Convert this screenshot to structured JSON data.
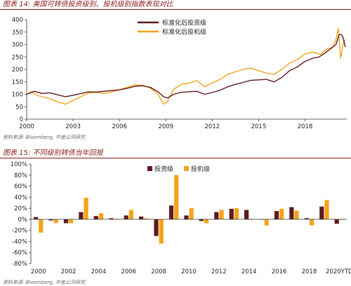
{
  "figures": [
    {
      "title": "图表 14:  美国可转债投资级别、投机级别指数表现对比",
      "source": "资料来源:  Bloomberg, 中金公司研究"
    },
    {
      "title": "图表 15:  不同级别转债当年回报",
      "source": "资料来源:  Bloomberg, 中金公司研究"
    }
  ],
  "colors": {
    "investment": "#5e1a1c",
    "speculative": "#f5a31a",
    "header": "#8a1a14"
  },
  "chart_data": [
    {
      "type": "line",
      "title": "",
      "xlabel": "",
      "ylabel": "",
      "xlim": [
        2000,
        2020.7
      ],
      "ylim": [
        0,
        400
      ],
      "x_ticks": [
        "2000",
        "2003",
        "2006",
        "2009",
        "2012",
        "2015",
        "2018"
      ],
      "y_ticks": [
        "0",
        "50",
        "100",
        "150",
        "200",
        "250",
        "300",
        "350",
        "400"
      ],
      "legend_position": "top-center",
      "series": [
        {
          "name": "标准化后投资级",
          "color": "#5e1a1c",
          "points": [
            [
              2000,
              100
            ],
            [
              2000.5,
              112
            ],
            [
              2001,
              103
            ],
            [
              2001.5,
              106
            ],
            [
              2002,
              98
            ],
            [
              2002.5,
              90
            ],
            [
              2003,
              96
            ],
            [
              2003.5,
              103
            ],
            [
              2004,
              110
            ],
            [
              2004.5,
              109
            ],
            [
              2005,
              112
            ],
            [
              2005.5,
              115
            ],
            [
              2006,
              118
            ],
            [
              2006.5,
              124
            ],
            [
              2007,
              132
            ],
            [
              2007.5,
              134
            ],
            [
              2008,
              128
            ],
            [
              2008.5,
              110
            ],
            [
              2008.85,
              90
            ],
            [
              2009.1,
              85
            ],
            [
              2009.5,
              100
            ],
            [
              2010,
              108
            ],
            [
              2010.5,
              110
            ],
            [
              2011,
              112
            ],
            [
              2011.5,
              100
            ],
            [
              2012,
              107
            ],
            [
              2012.5,
              116
            ],
            [
              2013,
              130
            ],
            [
              2013.5,
              140
            ],
            [
              2014,
              148
            ],
            [
              2014.5,
              156
            ],
            [
              2015,
              158
            ],
            [
              2015.5,
              160
            ],
            [
              2016,
              150
            ],
            [
              2016.5,
              168
            ],
            [
              2017,
              195
            ],
            [
              2017.5,
              210
            ],
            [
              2018,
              232
            ],
            [
              2018.5,
              245
            ],
            [
              2018.9,
              250
            ],
            [
              2019.2,
              262
            ],
            [
              2019.6,
              280
            ],
            [
              2020,
              300
            ],
            [
              2020.2,
              340
            ],
            [
              2020.35,
              340
            ],
            [
              2020.45,
              330
            ],
            [
              2020.6,
              290
            ]
          ]
        },
        {
          "name": "标准化后投机级",
          "color": "#f5a31a",
          "points": [
            [
              2000,
              100
            ],
            [
              2000.3,
              110
            ],
            [
              2000.7,
              95
            ],
            [
              2001,
              90
            ],
            [
              2001.5,
              82
            ],
            [
              2002,
              70
            ],
            [
              2002.5,
              60
            ],
            [
              2003,
              75
            ],
            [
              2003.5,
              90
            ],
            [
              2004,
              105
            ],
            [
              2004.5,
              108
            ],
            [
              2005,
              103
            ],
            [
              2005.5,
              110
            ],
            [
              2006,
              118
            ],
            [
              2006.5,
              128
            ],
            [
              2007,
              138
            ],
            [
              2007.5,
              136
            ],
            [
              2008,
              125
            ],
            [
              2008.5,
              100
            ],
            [
              2008.85,
              60
            ],
            [
              2009.1,
              70
            ],
            [
              2009.5,
              120
            ],
            [
              2010,
              140
            ],
            [
              2010.5,
              145
            ],
            [
              2011,
              155
            ],
            [
              2011.5,
              130
            ],
            [
              2012,
              145
            ],
            [
              2012.5,
              160
            ],
            [
              2013,
              180
            ],
            [
              2013.5,
              190
            ],
            [
              2014,
              200
            ],
            [
              2014.5,
              205
            ],
            [
              2015,
              195
            ],
            [
              2015.5,
              185
            ],
            [
              2016,
              180
            ],
            [
              2016.5,
              200
            ],
            [
              2017,
              225
            ],
            [
              2017.5,
              240
            ],
            [
              2018,
              262
            ],
            [
              2018.5,
              270
            ],
            [
              2019,
              260
            ],
            [
              2019.4,
              282
            ],
            [
              2019.8,
              290
            ],
            [
              2020,
              320
            ],
            [
              2020.15,
              365
            ],
            [
              2020.3,
              245
            ],
            [
              2020.45,
              300
            ],
            [
              2020.6,
              320
            ]
          ]
        }
      ]
    },
    {
      "type": "bar",
      "title": "",
      "xlabel": "",
      "ylabel": "",
      "ylim": [
        -80,
        100
      ],
      "y_ticks": [
        "100%",
        "80%",
        "60%",
        "40%",
        "20%",
        "0%",
        "-20%",
        "-40%",
        "-60%",
        "-80%"
      ],
      "categories": [
        "2000",
        "2001",
        "2002",
        "2003",
        "2004",
        "2005",
        "2006",
        "2007",
        "2008",
        "2009",
        "2010",
        "2011",
        "2012",
        "2013",
        "2014",
        "2015",
        "2016",
        "2017",
        "2018",
        "2019",
        "2020YTD"
      ],
      "x_tick_labels": [
        "2000",
        "",
        "2002",
        "",
        "2004",
        "",
        "2006",
        "",
        "2008",
        "",
        "2010",
        "",
        "2012",
        "",
        "2014",
        "",
        "2016",
        "",
        "2018",
        "",
        "2020YTD"
      ],
      "legend_position": "top-center",
      "series": [
        {
          "name": "投资级",
          "color": "#5e1a1c",
          "values": [
            4,
            -2,
            -7,
            13,
            6,
            2,
            7,
            5,
            -30,
            25,
            7,
            -3,
            13,
            19,
            17,
            0,
            15,
            22,
            2,
            23,
            -8
          ]
        },
        {
          "name": "投机级",
          "color": "#f5a31a",
          "values": [
            -24,
            -7,
            -7,
            39,
            11,
            1,
            17,
            2,
            -44,
            80,
            20,
            -7,
            17,
            20,
            -1,
            -11,
            19,
            16,
            -11,
            35,
            -1
          ]
        }
      ]
    }
  ]
}
